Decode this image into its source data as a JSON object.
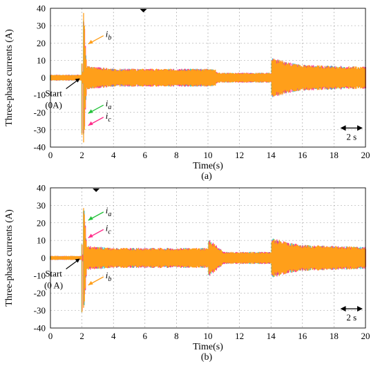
{
  "figure": {
    "caption_colors": {
      "a": "#1dc6c6",
      "b": "#ff9f1a",
      "c": "#ff2d8a",
      "green": "#23c23a"
    }
  },
  "chart_data": [
    {
      "panel_label": "(a)",
      "type": "line",
      "xlabel": "Time(s)",
      "ylabel": "Three-phase currents (A)",
      "xlim": [
        0,
        20
      ],
      "ylim": [
        -40,
        40
      ],
      "xticks": [
        0,
        2,
        4,
        6,
        8,
        10,
        12,
        14,
        16,
        18,
        20
      ],
      "yticks": [
        -40,
        -30,
        -20,
        -10,
        0,
        10,
        20,
        30,
        40
      ],
      "grid": true,
      "scale_bar": "2 s",
      "start_annotation": {
        "label": "Start",
        "sublabel": "(0A)",
        "time": 2.0
      },
      "series": [
        {
          "name": "ia",
          "color": "#1dc6c6",
          "envelope": [
            [
              0,
              1.5
            ],
            [
              1.95,
              1.5
            ],
            [
              2.0,
              -32
            ],
            [
              2.1,
              35
            ],
            [
              2.3,
              6
            ],
            [
              4,
              4.5
            ],
            [
              10,
              4.5
            ],
            [
              10.5,
              4
            ],
            [
              10.6,
              2.5
            ],
            [
              14,
              2.5
            ],
            [
              14.05,
              10
            ],
            [
              15,
              8
            ],
            [
              16,
              6.5
            ],
            [
              20,
              5.5
            ]
          ]
        },
        {
          "name": "ib",
          "color": "#ff9f1a",
          "envelope": [
            [
              0,
              1.5
            ],
            [
              1.95,
              1.5
            ],
            [
              2.0,
              -33
            ],
            [
              2.1,
              35
            ],
            [
              2.3,
              6
            ],
            [
              4,
              4.5
            ],
            [
              10,
              4.5
            ],
            [
              10.5,
              4
            ],
            [
              10.6,
              2.5
            ],
            [
              14,
              2.5
            ],
            [
              14.05,
              10
            ],
            [
              15,
              8
            ],
            [
              16,
              6.5
            ],
            [
              20,
              5.5
            ]
          ]
        },
        {
          "name": "ic",
          "color": "#ff2d8a",
          "envelope": [
            [
              0,
              1.5
            ],
            [
              1.95,
              1.5
            ],
            [
              2.0,
              -32
            ],
            [
              2.1,
              34
            ],
            [
              2.3,
              6
            ],
            [
              4,
              4.5
            ],
            [
              10,
              4.5
            ],
            [
              10.5,
              4
            ],
            [
              10.6,
              2.5
            ],
            [
              14,
              2.5
            ],
            [
              14.05,
              10
            ],
            [
              15,
              8
            ],
            [
              16,
              6.5
            ],
            [
              20,
              5.5
            ]
          ]
        }
      ],
      "labels": [
        {
          "text": "i",
          "sub": "b",
          "x": 3.5,
          "y": 25
        },
        {
          "text": "i",
          "sub": "a",
          "x": 3.5,
          "y": -15
        },
        {
          "text": "i",
          "sub": "c",
          "x": 3.5,
          "y": -22
        }
      ]
    },
    {
      "panel_label": "(b)",
      "type": "line",
      "xlabel": "Time(s)",
      "ylabel": "Three-phase currents (A)",
      "xlim": [
        0,
        20
      ],
      "ylim": [
        -40,
        40
      ],
      "xticks": [
        0,
        2,
        4,
        6,
        8,
        10,
        12,
        14,
        16,
        18,
        20
      ],
      "yticks": [
        -40,
        -30,
        -20,
        -10,
        0,
        10,
        20,
        30,
        40
      ],
      "grid": true,
      "scale_bar": "2 s",
      "start_annotation": {
        "label": "Start",
        "sublabel": "(0 A)",
        "time": 2.0
      },
      "series": [
        {
          "name": "ia",
          "color": "#1dc6c6",
          "envelope": [
            [
              0,
              1.0
            ],
            [
              1.95,
              1.0
            ],
            [
              2.0,
              -31
            ],
            [
              2.1,
              32
            ],
            [
              2.3,
              6
            ],
            [
              4,
              5
            ],
            [
              10,
              5
            ],
            [
              10.05,
              9.5
            ],
            [
              11,
              3
            ],
            [
              14,
              3
            ],
            [
              14.05,
              10
            ],
            [
              15,
              8
            ],
            [
              16,
              6.5
            ],
            [
              20,
              5.5
            ]
          ]
        },
        {
          "name": "ib",
          "color": "#ff9f1a",
          "envelope": [
            [
              0,
              1.0
            ],
            [
              1.95,
              1.0
            ],
            [
              2.0,
              -31
            ],
            [
              2.1,
              28
            ],
            [
              2.3,
              6
            ],
            [
              4,
              5
            ],
            [
              10,
              5
            ],
            [
              10.05,
              9.5
            ],
            [
              11,
              3
            ],
            [
              14,
              3
            ],
            [
              14.05,
              10
            ],
            [
              15,
              8
            ],
            [
              16,
              6.5
            ],
            [
              20,
              5.5
            ]
          ]
        },
        {
          "name": "ic",
          "color": "#ff2d8a",
          "envelope": [
            [
              0,
              1.0
            ],
            [
              1.95,
              1.0
            ],
            [
              2.0,
              -30
            ],
            [
              2.1,
              30
            ],
            [
              2.3,
              6
            ],
            [
              4,
              5
            ],
            [
              10,
              5
            ],
            [
              10.05,
              9.5
            ],
            [
              11,
              3
            ],
            [
              14,
              3
            ],
            [
              14.05,
              10
            ],
            [
              15,
              8
            ],
            [
              16,
              6.5
            ],
            [
              20,
              5.5
            ]
          ]
        }
      ],
      "labels": [
        {
          "text": "i",
          "sub": "a",
          "x": 3.5,
          "y": 27
        },
        {
          "text": "i",
          "sub": "c",
          "x": 3.5,
          "y": 17
        },
        {
          "text": "i",
          "sub": "b",
          "x": 3.5,
          "y": -10
        }
      ]
    }
  ]
}
